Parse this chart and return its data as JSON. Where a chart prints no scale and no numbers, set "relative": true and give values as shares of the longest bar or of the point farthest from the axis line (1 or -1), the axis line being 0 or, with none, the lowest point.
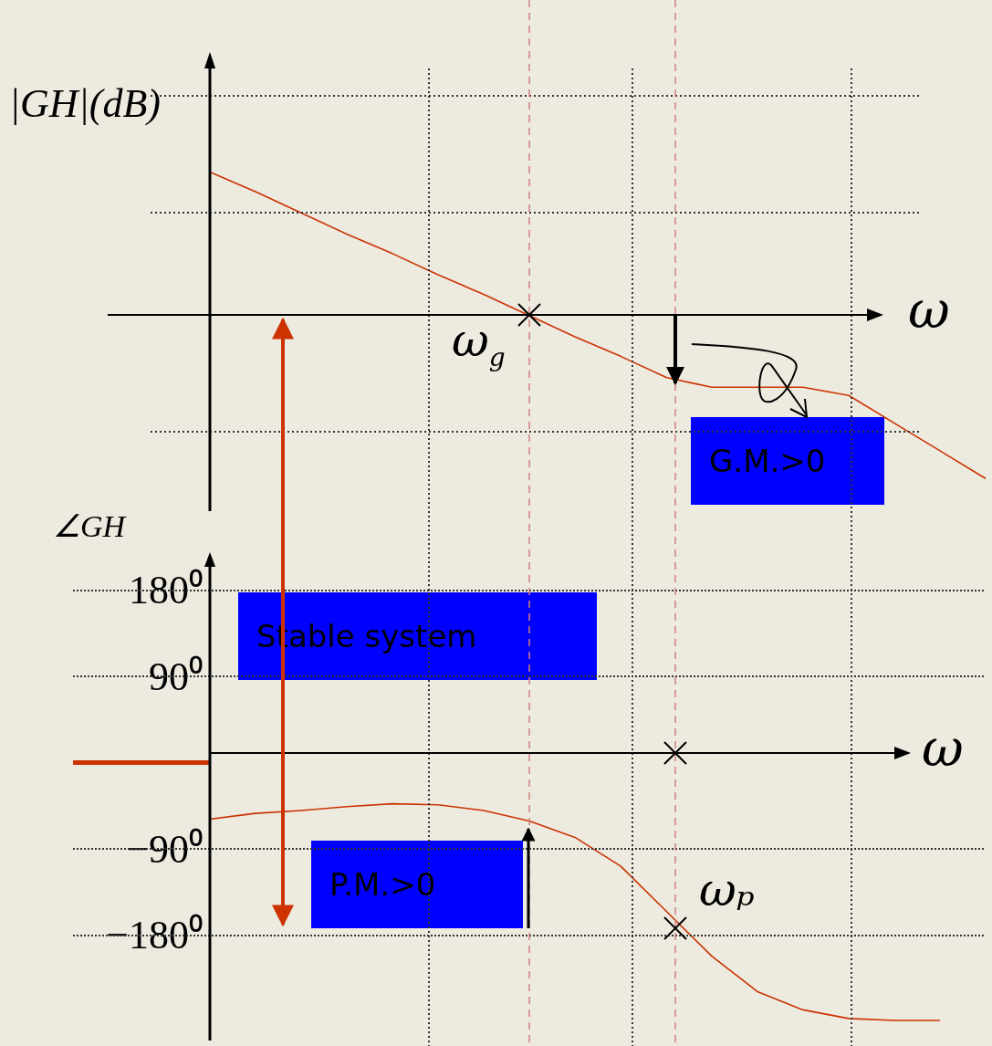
{
  "chart_data": [
    {
      "type": "line",
      "xlabel": "ω",
      "ylabel": "|GH|(dB)",
      "relative": true,
      "tick_labels": false,
      "marker": "none",
      "categories": [
        null,
        null,
        null,
        null,
        null,
        null,
        null,
        null,
        null,
        null,
        null,
        null,
        null,
        null,
        null,
        null,
        null,
        null,
        null,
        null,
        null
      ],
      "series": [
        {
          "color": "#cc3300",
          "values": [
            null,
            null,
            null,
            0.88,
            0.76,
            0.63,
            0.5,
            0.38,
            0.25,
            0.13,
            0,
            -0.13,
            -0.25,
            -0.38,
            -0.44,
            -0.44,
            -0.44,
            -0.49,
            -0.66,
            -0.83,
            -1
          ]
        }
      ],
      "annotations": [
        "ω$_{g}$",
        "G.M.>0"
      ]
    },
    {
      "type": "line",
      "xlabel": "ω",
      "ylabel": "∠GH",
      "tick_labels": "y",
      "grid": "y",
      "marker": "none",
      "categories": [
        null,
        null,
        null,
        null,
        null,
        null,
        null,
        null,
        null,
        null,
        null,
        null,
        null,
        null,
        null,
        null,
        null,
        null,
        null,
        null,
        null
      ],
      "ylim": [
        -290,
        210
      ],
      "yticks": [
        {
          "value": -180,
          "label": "−180⁰"
        },
        {
          "value": -90,
          "label": "−90⁰"
        },
        {
          "value": 90,
          "label": "90⁰"
        },
        {
          "value": 180,
          "label": "180⁰"
        }
      ],
      "series": [
        {
          "color": "#cc3300",
          "values": [
            null,
            null,
            null,
            -59,
            -53,
            -50,
            -46,
            -43,
            -44,
            -50,
            -61,
            -78,
            -108,
            -155,
            -202,
            -239,
            -258,
            -267,
            -269,
            -269,
            null
          ]
        },
        {
          "color": "#cc3300",
          "values": [
            0,
            0,
            0,
            0,
            null,
            null,
            null,
            null,
            null,
            null,
            null,
            null,
            null,
            null,
            null,
            null,
            null,
            null,
            null,
            null,
            null
          ]
        }
      ],
      "annotations": [
        "ωₚ",
        "Stable system",
        "P.M.>0"
      ]
    }
  ]
}
